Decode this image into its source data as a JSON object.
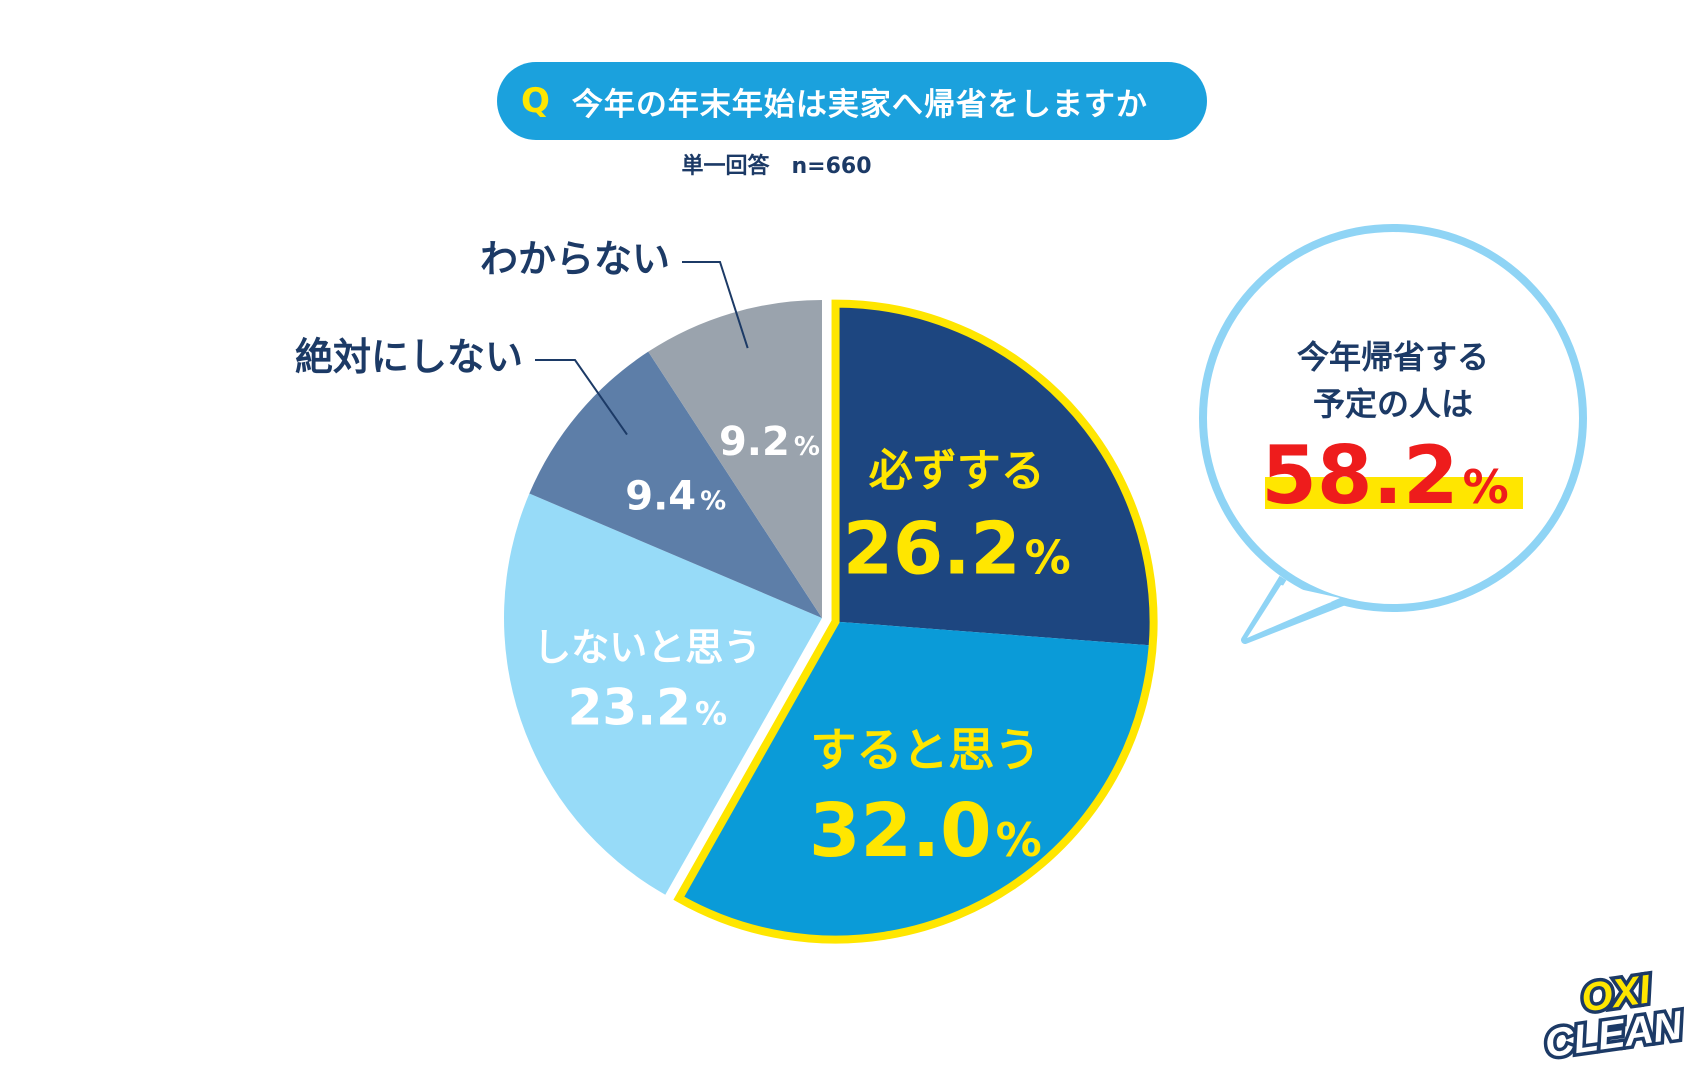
{
  "question": {
    "q_mark": "Q",
    "text": "今年の年末年始は実家へ帰省をしますか"
  },
  "subtitle": "単一回答　n=660",
  "chart_data": {
    "type": "pie",
    "percent_suffix": "%",
    "slices": [
      {
        "label": "必ずする",
        "value": 26.2,
        "color": "#1d4680",
        "text_color": "#ffe600",
        "highlight": true
      },
      {
        "label": "すると思う",
        "value": 32.0,
        "color": "#0a9bd8",
        "text_color": "#ffe600",
        "highlight": true
      },
      {
        "label": "しないと思う",
        "value": 23.2,
        "color": "#97dbf8",
        "text_color": "#ffffff",
        "highlight": false
      },
      {
        "label": "絶対にしない",
        "value": 9.4,
        "color": "#5d7ea8",
        "text_color": "#ffffff",
        "highlight": false
      },
      {
        "label": "わからない",
        "value": 9.2,
        "color": "#9aa3ad",
        "text_color": "#ffffff",
        "highlight": false
      }
    ],
    "highlight_color": "#ffe600",
    "callout_outline_color": "#8fd4f5"
  },
  "callout": {
    "line1": "今年帰省する",
    "line2": "予定の人は",
    "value": "58.2",
    "suffix": "%",
    "value_color": "#ee1c1c",
    "marker_color": "#ffe600"
  },
  "logo": {
    "line1": "OXI",
    "line2": "CLEAN"
  }
}
